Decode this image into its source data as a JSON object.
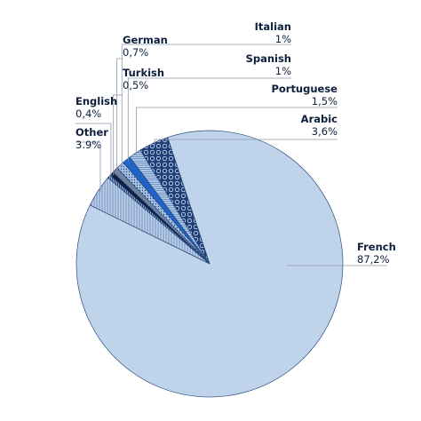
{
  "chart_data": {
    "type": "pie",
    "title": "",
    "slices": [
      {
        "label": "French",
        "value_label": "87,2%",
        "value": 87.2,
        "color": "#bfd4ea",
        "pattern": "solid"
      },
      {
        "label": "Other",
        "value_label": "3.9%",
        "value": 3.9,
        "color": "#a9c3e0",
        "pattern": "vlines"
      },
      {
        "label": "English",
        "value_label": "0,4%",
        "value": 0.4,
        "color": "#5f7fb0",
        "pattern": "vlines-dense"
      },
      {
        "label": "Turkish",
        "value_label": "0,5%",
        "value": 0.5,
        "color": "#0b1f45",
        "pattern": "solid"
      },
      {
        "label": "German",
        "value_label": "0,7%",
        "value": 0.7,
        "color": "#d6e4f3",
        "pattern": "vlines-dark"
      },
      {
        "label": "Italian",
        "value_label": "1%",
        "value": 1.0,
        "color": "#7da0cf",
        "pattern": "dots"
      },
      {
        "label": "Spanish",
        "value_label": "1%",
        "value": 1.0,
        "color": "#1e63c6",
        "pattern": "solid"
      },
      {
        "label": "Portuguese",
        "value_label": "1,5%",
        "value": 1.5,
        "color": "#9dbbe0",
        "pattern": "hlines"
      },
      {
        "label": "Arabic",
        "value_label": "3,6%",
        "value": 3.6,
        "color": "#1f3f78",
        "pattern": "loops"
      }
    ]
  }
}
